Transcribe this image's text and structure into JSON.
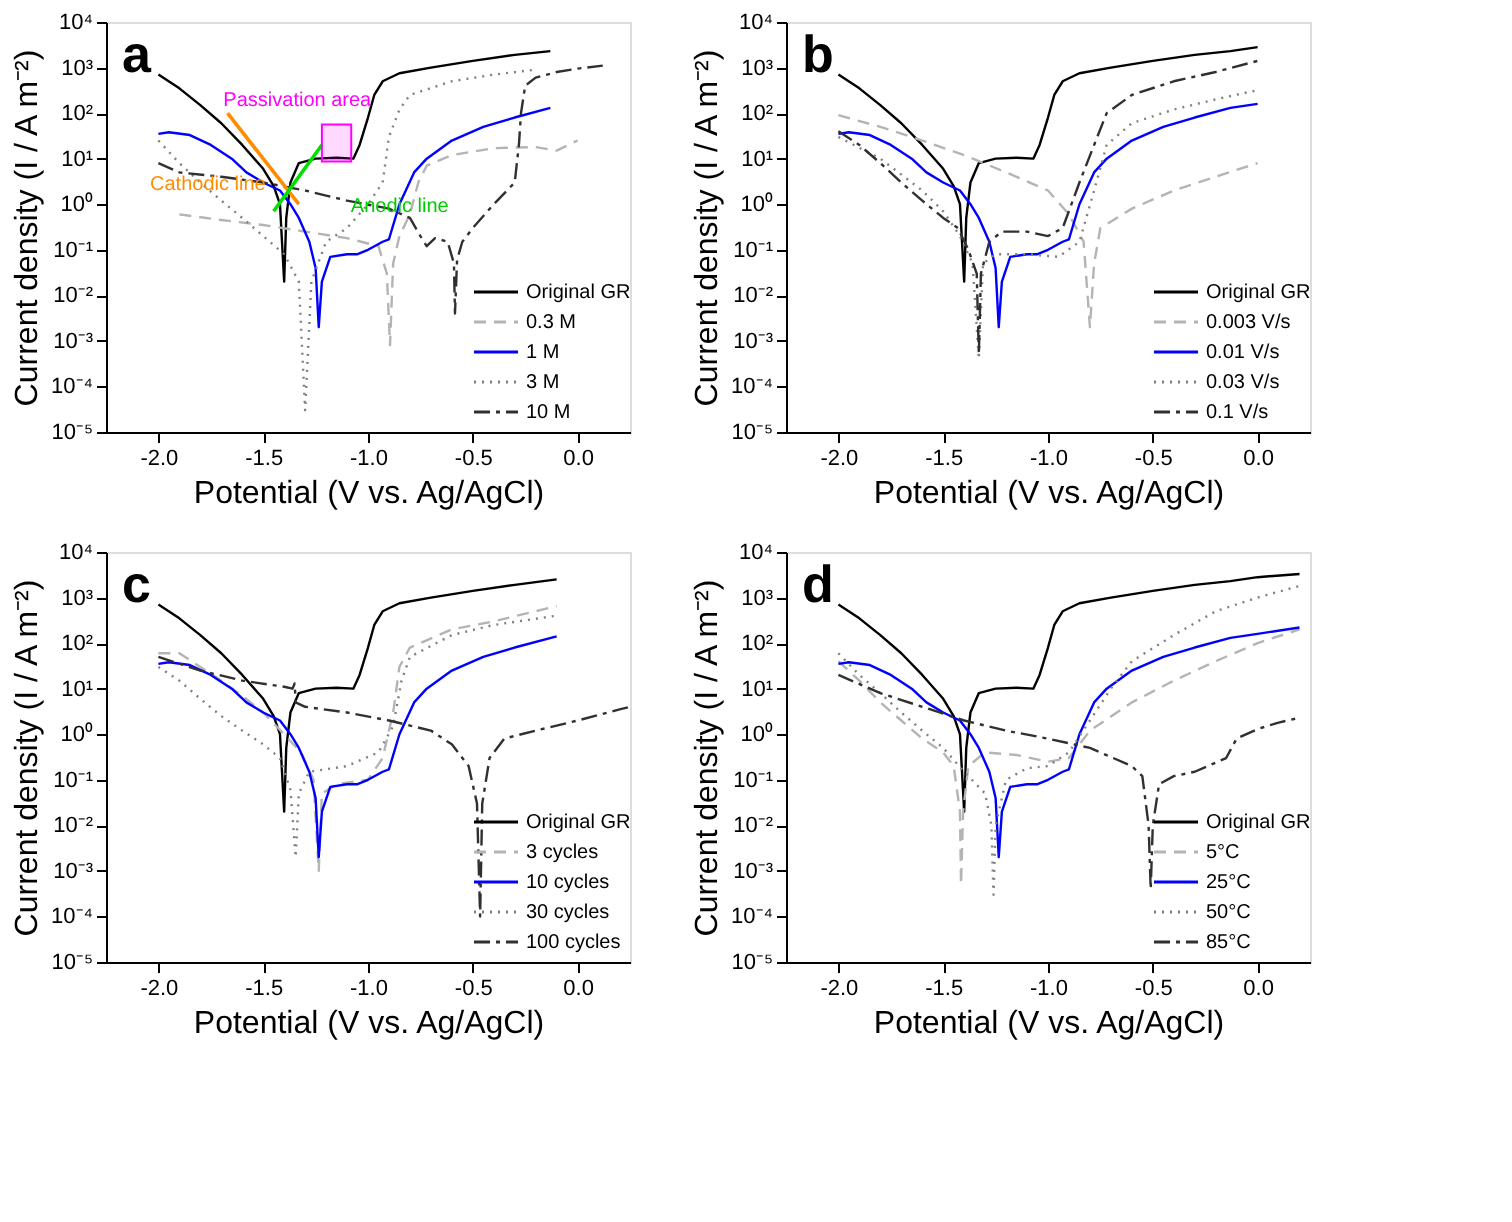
{
  "chart_data": [
    {
      "type": "line",
      "title": "a",
      "xlabel": "Potential (V vs. Ag/AgCl)",
      "ylabel": "Current density (I / A m⁻²)",
      "log": "y",
      "legend": "bottom right",
      "xlim": [
        -2.25,
        0.25
      ],
      "ylim": [
        1e-05,
        10000
      ],
      "xticks": [
        {
          "value": -2,
          "label": "-2.0"
        },
        {
          "value": -1.5,
          "label": "-1.5"
        },
        {
          "value": -1,
          "label": "-1.0"
        },
        {
          "value": -0.5,
          "label": "-0.5"
        },
        {
          "value": 0,
          "label": "0.0"
        }
      ],
      "yticks": [
        {
          "value": 1e-05,
          "label": "10⁻⁵"
        },
        {
          "value": 0.0001,
          "label": "10⁻⁴"
        },
        {
          "value": 0.001,
          "label": "10⁻³"
        },
        {
          "value": 0.01,
          "label": "10⁻²"
        },
        {
          "value": 0.1,
          "label": "10⁻¹"
        },
        {
          "value": 1,
          "label": "10⁰"
        },
        {
          "value": 10,
          "label": "10¹"
        },
        {
          "value": 100,
          "label": "10²"
        },
        {
          "value": 1000,
          "label": "10³"
        },
        {
          "value": 10000,
          "label": "10⁴"
        }
      ],
      "series": [
        {
          "name": "Original GR",
          "color": "#000000",
          "line_style": "solid",
          "x": [
            -2.0,
            -1.9,
            -1.8,
            -1.7,
            -1.6,
            -1.5,
            -1.45,
            -1.42,
            -1.4,
            -1.39,
            -1.37,
            -1.33,
            -1.25,
            -1.15,
            -1.07,
            -1.04,
            -1.0,
            -0.97,
            -0.93,
            -0.85,
            -0.7,
            -0.5,
            -0.3,
            -0.13
          ],
          "values": [
            700,
            350,
            150,
            60,
            20,
            6,
            2.5,
            1,
            0.02,
            0.5,
            3,
            8,
            10,
            10.5,
            10,
            20,
            80,
            250,
            500,
            750,
            1000,
            1400,
            1900,
            2300
          ]
        },
        {
          "name": "0.3 M",
          "color": "#b4b4b4",
          "line_style": "dashed",
          "x": [
            -1.9,
            -1.7,
            -1.5,
            -1.3,
            -1.1,
            -0.95,
            -0.91,
            -0.895,
            -0.88,
            -0.85,
            -0.8,
            -0.76,
            -0.72,
            -0.6,
            -0.4,
            -0.2,
            -0.1,
            0.0
          ],
          "values": [
            0.6,
            0.45,
            0.35,
            0.25,
            0.18,
            0.12,
            0.03,
            0.0008,
            0.05,
            0.2,
            0.6,
            3,
            7,
            12,
            17,
            18,
            15,
            25
          ]
        },
        {
          "name": "1 M",
          "color": "#0000ff",
          "line_style": "solid",
          "x": [
            -2.0,
            -1.95,
            -1.85,
            -1.75,
            -1.65,
            -1.58,
            -1.5,
            -1.42,
            -1.37,
            -1.33,
            -1.28,
            -1.25,
            -1.235,
            -1.22,
            -1.18,
            -1.1,
            -1.05,
            -1.0,
            -0.93,
            -0.9,
            -0.85,
            -0.78,
            -0.72,
            -0.6,
            -0.45,
            -0.3,
            -0.13
          ],
          "values": [
            35,
            38,
            33,
            20,
            10,
            5,
            3,
            2,
            1,
            0.5,
            0.15,
            0.04,
            0.002,
            0.02,
            0.07,
            0.08,
            0.08,
            0.1,
            0.15,
            0.17,
            1,
            5,
            10,
            25,
            50,
            80,
            130
          ]
        },
        {
          "name": "3 M",
          "color": "#808080",
          "line_style": "dotted",
          "x": [
            -2.0,
            -1.9,
            -1.8,
            -1.7,
            -1.6,
            -1.5,
            -1.4,
            -1.33,
            -1.3,
            -1.27,
            -1.2,
            -1.1,
            -1.0,
            -0.93,
            -0.9,
            -0.85,
            -0.8,
            -0.6,
            -0.4,
            -0.2
          ],
          "values": [
            25,
            8,
            3,
            1.2,
            0.5,
            0.2,
            0.08,
            0.02,
            3e-05,
            0.02,
            0.15,
            0.3,
            1,
            3,
            30,
            120,
            250,
            500,
            700,
            900
          ]
        },
        {
          "name": "10 M",
          "color": "#303030",
          "line_style": "dashdot",
          "x": [
            -2.0,
            -1.9,
            -1.7,
            -1.5,
            -1.3,
            -1.1,
            -0.9,
            -0.8,
            -0.75,
            -0.72,
            -0.68,
            -0.62,
            -0.59,
            -0.585,
            -0.575,
            -0.55,
            -0.5,
            -0.4,
            -0.3,
            -0.28,
            -0.27,
            -0.25,
            -0.2,
            -0.1,
            0.0,
            0.12
          ],
          "values": [
            8,
            5,
            4,
            3,
            2,
            1.2,
            0.8,
            0.5,
            0.2,
            0.12,
            0.18,
            0.15,
            0.05,
            0.004,
            0.06,
            0.15,
            0.3,
            1,
            3,
            20,
            100,
            400,
            600,
            800,
            950,
            1100
          ]
        },
        {
          "type": "line",
          "color": "#ff8c00",
          "line_style": "solid",
          "x": [
            -1.67,
            -1.33
          ],
          "values": [
            100,
            1
          ]
        },
        {
          "type": "line",
          "color": "#00e000",
          "line_style": "solid",
          "x": [
            -1.45,
            -1.22
          ],
          "values": [
            0.7,
            20
          ]
        }
      ],
      "bands": [
        {
          "axis": "x",
          "from": -1.22,
          "to": -1.08,
          "label": "Passivation area",
          "color": "#ff00ff"
        }
      ],
      "annotations": [
        {
          "text": "Anodic line",
          "x": -1.12,
          "y": 0.9
        },
        {
          "text": "Cathodic line",
          "x": -1.45,
          "y": 5
        }
      ]
    },
    {
      "type": "line",
      "title": "b",
      "xlabel": "Potential (V vs. Ag/AgCl)",
      "ylabel": "Current density (I / A m⁻²)",
      "log": "y",
      "legend": "bottom right",
      "xlim": [
        -2.25,
        0.25
      ],
      "ylim": [
        1e-05,
        10000
      ],
      "xticks": [
        {
          "value": -2,
          "label": "-2.0"
        },
        {
          "value": -1.5,
          "label": "-1.5"
        },
        {
          "value": -1,
          "label": "-1.0"
        },
        {
          "value": -0.5,
          "label": "-0.5"
        },
        {
          "value": 0,
          "label": "0.0"
        }
      ],
      "yticks": [
        {
          "value": 1e-05,
          "label": "10⁻⁵"
        },
        {
          "value": 0.0001,
          "label": "10⁻⁴"
        },
        {
          "value": 0.001,
          "label": "10⁻³"
        },
        {
          "value": 0.01,
          "label": "10⁻²"
        },
        {
          "value": 0.1,
          "label": "10⁻¹"
        },
        {
          "value": 1,
          "label": "10⁰"
        },
        {
          "value": 10,
          "label": "10¹"
        },
        {
          "value": 100,
          "label": "10²"
        },
        {
          "value": 1000,
          "label": "10³"
        },
        {
          "value": 10000,
          "label": "10⁴"
        }
      ],
      "series": [
        {
          "name": "Original GR",
          "color": "#000000",
          "line_style": "solid",
          "x": [
            -2.0,
            -1.9,
            -1.8,
            -1.7,
            -1.6,
            -1.5,
            -1.45,
            -1.42,
            -1.4,
            -1.39,
            -1.37,
            -1.33,
            -1.25,
            -1.15,
            -1.07,
            -1.04,
            -1.0,
            -0.97,
            -0.93,
            -0.85,
            -0.7,
            -0.5,
            -0.3,
            -0.13,
            0.0
          ],
          "values": [
            700,
            350,
            150,
            60,
            20,
            6,
            2.5,
            1,
            0.02,
            0.5,
            3,
            8,
            10,
            10.5,
            10,
            20,
            80,
            250,
            500,
            750,
            1000,
            1400,
            1900,
            2300,
            2800
          ]
        },
        {
          "name": "0.003 V/s",
          "color": "#b4b4b4",
          "line_style": "dashed",
          "x": [
            -2.0,
            -1.8,
            -1.6,
            -1.4,
            -1.2,
            -1.0,
            -0.9,
            -0.83,
            -0.8,
            -0.78,
            -0.75,
            -0.6,
            -0.4,
            -0.2,
            0.0
          ],
          "values": [
            90,
            50,
            25,
            12,
            5,
            2,
            0.6,
            0.15,
            0.002,
            0.05,
            0.3,
            0.8,
            2,
            4,
            8
          ]
        },
        {
          "name": "0.01 V/s",
          "color": "#0000ff",
          "line_style": "solid",
          "x": [
            -2.0,
            -1.95,
            -1.85,
            -1.75,
            -1.65,
            -1.58,
            -1.5,
            -1.42,
            -1.37,
            -1.33,
            -1.28,
            -1.25,
            -1.235,
            -1.22,
            -1.18,
            -1.1,
            -1.05,
            -1.0,
            -0.93,
            -0.9,
            -0.85,
            -0.78,
            -0.72,
            -0.6,
            -0.45,
            -0.3,
            -0.13,
            0.0
          ],
          "values": [
            35,
            38,
            33,
            20,
            10,
            5,
            3,
            2,
            1,
            0.5,
            0.15,
            0.04,
            0.002,
            0.02,
            0.07,
            0.08,
            0.08,
            0.1,
            0.15,
            0.17,
            1,
            5,
            10,
            25,
            50,
            80,
            130,
            160
          ]
        },
        {
          "name": "0.03 V/s",
          "color": "#808080",
          "line_style": "dotted",
          "x": [
            -2.0,
            -1.8,
            -1.6,
            -1.5,
            -1.42,
            -1.36,
            -1.33,
            -1.31,
            -1.25,
            -1.1,
            -0.95,
            -0.85,
            -0.78,
            -0.72,
            -0.6,
            -0.4,
            -0.2,
            0.0
          ],
          "values": [
            30,
            10,
            2,
            0.7,
            0.2,
            0.05,
            0.0004,
            0.05,
            0.08,
            0.08,
            0.07,
            0.15,
            2,
            20,
            60,
            120,
            200,
            320
          ]
        },
        {
          "name": "0.1 V/s",
          "color": "#303030",
          "line_style": "dashdot",
          "x": [
            -2.0,
            -1.9,
            -1.8,
            -1.7,
            -1.6,
            -1.5,
            -1.43,
            -1.38,
            -1.34,
            -1.33,
            -1.32,
            -1.28,
            -1.22,
            -1.1,
            -1.0,
            -0.93,
            -0.85,
            -0.78,
            -0.72,
            -0.6,
            -0.4,
            -0.2,
            0.0
          ],
          "values": [
            40,
            20,
            8,
            3,
            1.2,
            0.5,
            0.3,
            0.1,
            0.03,
            0.0005,
            0.03,
            0.15,
            0.25,
            0.25,
            0.2,
            0.3,
            3,
            20,
            100,
            250,
            500,
            800,
            1400
          ]
        }
      ]
    },
    {
      "type": "line",
      "title": "c",
      "xlabel": "Potential (V vs. Ag/AgCl)",
      "ylabel": "Current density (I / A m⁻²)",
      "log": "y",
      "legend": "bottom right",
      "xlim": [
        -2.25,
        0.25
      ],
      "ylim": [
        1e-05,
        10000
      ],
      "xticks": [
        {
          "value": -2,
          "label": "-2.0"
        },
        {
          "value": -1.5,
          "label": "-1.5"
        },
        {
          "value": -1,
          "label": "-1.0"
        },
        {
          "value": -0.5,
          "label": "-0.5"
        },
        {
          "value": 0,
          "label": "0.0"
        }
      ],
      "yticks": [
        {
          "value": 1e-05,
          "label": "10⁻⁵"
        },
        {
          "value": 0.0001,
          "label": "10⁻⁴"
        },
        {
          "value": 0.001,
          "label": "10⁻³"
        },
        {
          "value": 0.01,
          "label": "10⁻²"
        },
        {
          "value": 0.1,
          "label": "10⁻¹"
        },
        {
          "value": 1,
          "label": "10⁰"
        },
        {
          "value": 10,
          "label": "10¹"
        },
        {
          "value": 100,
          "label": "10²"
        },
        {
          "value": 1000,
          "label": "10³"
        },
        {
          "value": 10000,
          "label": "10⁴"
        }
      ],
      "series": [
        {
          "name": "Original GR",
          "color": "#000000",
          "line_style": "solid",
          "x": [
            -2.0,
            -1.9,
            -1.8,
            -1.7,
            -1.6,
            -1.5,
            -1.45,
            -1.42,
            -1.4,
            -1.39,
            -1.37,
            -1.33,
            -1.25,
            -1.15,
            -1.07,
            -1.04,
            -1.0,
            -0.97,
            -0.93,
            -0.85,
            -0.7,
            -0.5,
            -0.3,
            -0.1
          ],
          "values": [
            700,
            350,
            150,
            60,
            20,
            6,
            2.5,
            1,
            0.02,
            0.5,
            3,
            8,
            10,
            10.5,
            10,
            20,
            80,
            250,
            500,
            750,
            1000,
            1400,
            1900,
            2500
          ]
        },
        {
          "name": "3 cycles",
          "color": "#b4b4b4",
          "line_style": "dashed",
          "x": [
            -2.0,
            -1.9,
            -1.8,
            -1.7,
            -1.6,
            -1.5,
            -1.4,
            -1.32,
            -1.26,
            -1.235,
            -1.22,
            -1.15,
            -1.0,
            -0.93,
            -0.88,
            -0.85,
            -0.8,
            -0.6,
            -0.4,
            -0.1
          ],
          "values": [
            60,
            60,
            30,
            15,
            7,
            3,
            1,
            0.4,
            0.1,
            0.001,
            0.05,
            0.08,
            0.1,
            0.3,
            3,
            30,
            80,
            200,
            300,
            650
          ]
        },
        {
          "name": "10 cycles",
          "color": "#0000ff",
          "line_style": "solid",
          "x": [
            -2.0,
            -1.95,
            -1.85,
            -1.75,
            -1.65,
            -1.58,
            -1.5,
            -1.42,
            -1.37,
            -1.33,
            -1.28,
            -1.25,
            -1.235,
            -1.22,
            -1.18,
            -1.1,
            -1.05,
            -1.0,
            -0.93,
            -0.9,
            -0.85,
            -0.78,
            -0.72,
            -0.6,
            -0.45,
            -0.3,
            -0.1
          ],
          "values": [
            35,
            38,
            33,
            20,
            10,
            5,
            3,
            2,
            1,
            0.5,
            0.15,
            0.04,
            0.002,
            0.02,
            0.07,
            0.08,
            0.08,
            0.1,
            0.15,
            0.17,
            1,
            5,
            10,
            25,
            50,
            80,
            140
          ]
        },
        {
          "name": "30 cycles",
          "color": "#808080",
          "line_style": "dotted",
          "x": [
            -2.0,
            -1.9,
            -1.8,
            -1.7,
            -1.6,
            -1.5,
            -1.42,
            -1.37,
            -1.345,
            -1.33,
            -1.28,
            -1.1,
            -0.95,
            -0.88,
            -0.84,
            -0.8,
            -0.6,
            -0.4,
            -0.1
          ],
          "values": [
            30,
            15,
            6,
            2.5,
            1.2,
            0.6,
            0.3,
            0.06,
            0.002,
            0.05,
            0.15,
            0.2,
            0.4,
            1.5,
            15,
            50,
            150,
            250,
            400
          ]
        },
        {
          "name": "100 cycles",
          "color": "#303030",
          "line_style": "dashdot",
          "x": [
            -2.0,
            -1.8,
            -1.6,
            -1.4,
            -1.36,
            -1.35,
            -1.345,
            -1.3,
            -1.1,
            -0.9,
            -0.7,
            -0.6,
            -0.52,
            -0.48,
            -0.465,
            -0.455,
            -0.42,
            -0.35,
            -0.2,
            0.0,
            0.2,
            0.25
          ],
          "values": [
            50,
            25,
            15,
            11,
            10,
            13,
            5,
            4,
            3,
            2,
            1.2,
            0.6,
            0.2,
            0.03,
            0.0001,
            0.03,
            0.3,
            0.8,
            1.2,
            2,
            3.5,
            4
          ]
        }
      ]
    },
    {
      "type": "line",
      "title": "d",
      "xlabel": "Potential (V vs. Ag/AgCl)",
      "ylabel": "Current density (I / A m⁻²)",
      "log": "y",
      "legend": "bottom right",
      "xlim": [
        -2.25,
        0.25
      ],
      "ylim": [
        1e-05,
        10000
      ],
      "xticks": [
        {
          "value": -2,
          "label": "-2.0"
        },
        {
          "value": -1.5,
          "label": "-1.5"
        },
        {
          "value": -1,
          "label": "-1.0"
        },
        {
          "value": -0.5,
          "label": "-0.5"
        },
        {
          "value": 0,
          "label": "0.0"
        }
      ],
      "yticks": [
        {
          "value": 1e-05,
          "label": "10⁻⁵"
        },
        {
          "value": 0.0001,
          "label": "10⁻⁴"
        },
        {
          "value": 0.001,
          "label": "10⁻³"
        },
        {
          "value": 0.01,
          "label": "10⁻²"
        },
        {
          "value": 0.1,
          "label": "10⁻¹"
        },
        {
          "value": 1,
          "label": "10⁰"
        },
        {
          "value": 10,
          "label": "10¹"
        },
        {
          "value": 100,
          "label": "10²"
        },
        {
          "value": 1000,
          "label": "10³"
        },
        {
          "value": 10000,
          "label": "10⁴"
        }
      ],
      "series": [
        {
          "name": "Original GR",
          "color": "#000000",
          "line_style": "solid",
          "x": [
            -2.0,
            -1.9,
            -1.8,
            -1.7,
            -1.6,
            -1.5,
            -1.45,
            -1.42,
            -1.4,
            -1.39,
            -1.37,
            -1.33,
            -1.25,
            -1.15,
            -1.07,
            -1.04,
            -1.0,
            -0.97,
            -0.93,
            -0.85,
            -0.7,
            -0.5,
            -0.3,
            -0.13,
            0.0,
            0.2
          ],
          "values": [
            700,
            350,
            150,
            60,
            20,
            6,
            2.5,
            1,
            0.02,
            0.5,
            3,
            8,
            10,
            10.5,
            10,
            20,
            80,
            250,
            500,
            750,
            1000,
            1400,
            1900,
            2300,
            2800,
            3300
          ]
        },
        {
          "name": "5°C",
          "color": "#b4b4b4",
          "line_style": "dashed",
          "x": [
            -2.0,
            -1.9,
            -1.8,
            -1.7,
            -1.6,
            -1.5,
            -1.45,
            -1.42,
            -1.415,
            -1.405,
            -1.38,
            -1.3,
            -1.15,
            -1.0,
            -0.9,
            -0.8,
            -0.6,
            -0.4,
            -0.2,
            0.0,
            0.2
          ],
          "values": [
            40,
            15,
            5,
            2,
            0.8,
            0.4,
            0.2,
            0.02,
            0.0005,
            0.02,
            0.2,
            0.4,
            0.35,
            0.25,
            0.3,
            1.2,
            5,
            15,
            40,
            100,
            200
          ]
        },
        {
          "name": "25°C",
          "color": "#0000ff",
          "line_style": "solid",
          "x": [
            -2.0,
            -1.95,
            -1.85,
            -1.75,
            -1.65,
            -1.58,
            -1.5,
            -1.42,
            -1.37,
            -1.33,
            -1.28,
            -1.25,
            -1.235,
            -1.22,
            -1.18,
            -1.1,
            -1.05,
            -1.0,
            -0.93,
            -0.9,
            -0.85,
            -0.78,
            -0.72,
            -0.6,
            -0.45,
            -0.3,
            -0.13,
            0.0,
            0.2
          ],
          "values": [
            35,
            38,
            33,
            20,
            10,
            5,
            3,
            2,
            1,
            0.5,
            0.15,
            0.04,
            0.002,
            0.02,
            0.07,
            0.08,
            0.08,
            0.1,
            0.15,
            0.17,
            1,
            5,
            10,
            25,
            50,
            80,
            130,
            160,
            220
          ]
        },
        {
          "name": "50°C",
          "color": "#808080",
          "line_style": "dotted",
          "x": [
            -2.0,
            -1.9,
            -1.8,
            -1.7,
            -1.6,
            -1.5,
            -1.4,
            -1.3,
            -1.27,
            -1.26,
            -1.25,
            -1.2,
            -1.1,
            -1.0,
            -0.9,
            -0.8,
            -0.7,
            -0.6,
            -0.4,
            -0.2,
            0.0,
            0.2
          ],
          "values": [
            60,
            20,
            8,
            3,
            1.2,
            0.5,
            0.15,
            0.05,
            0.01,
            0.0003,
            0.01,
            0.1,
            0.18,
            0.2,
            0.4,
            2,
            10,
            40,
            150,
            500,
            1000,
            1800
          ]
        },
        {
          "name": "85°C",
          "color": "#303030",
          "line_style": "dashdot",
          "x": [
            -2.0,
            -1.8,
            -1.6,
            -1.4,
            -1.2,
            -1.0,
            -0.8,
            -0.6,
            -0.55,
            -0.52,
            -0.51,
            -0.5,
            -0.47,
            -0.4,
            -0.3,
            -0.15,
            -0.1,
            0.0,
            0.1,
            0.2
          ],
          "values": [
            20,
            8,
            4,
            2,
            1.2,
            0.8,
            0.5,
            0.2,
            0.12,
            0.01,
            0.0004,
            0.01,
            0.08,
            0.12,
            0.15,
            0.3,
            0.8,
            1.3,
            1.8,
            2.3
          ]
        }
      ]
    }
  ]
}
